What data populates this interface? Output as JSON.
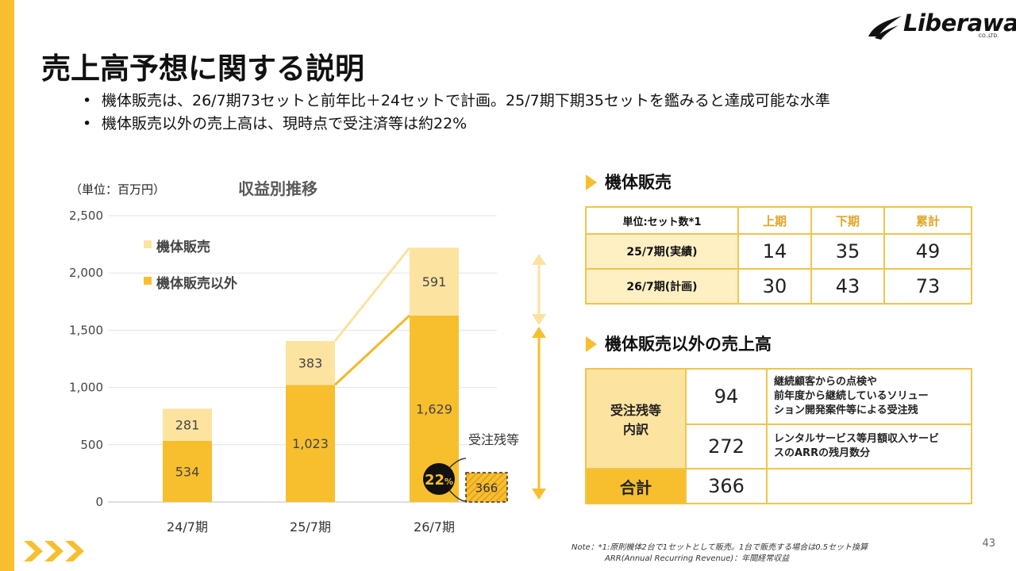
{
  "brand": {
    "logo_text": "Liberaware",
    "logo_sub": "CO.,LTD."
  },
  "colors": {
    "accent": "#f7bf2e",
    "light": "#fde3a0",
    "dark_line": "#f2b92a",
    "light_line": "#fbe2a2"
  },
  "title": "売上高予想に関する説明",
  "bullets": [
    "機体販売は、26/7期73セットと前年比＋24セットで計画。25/7期下期35セットを鑑みると達成可能な水準",
    "機体販売以外の売上高は、現時点で受注済等は約22%"
  ],
  "chart_unit": "（単位：百万円）",
  "chart_data": {
    "type": "bar",
    "stacked": true,
    "title": "収益別推移",
    "categories": [
      "24/7期",
      "25/7期",
      "26/7期"
    ],
    "series": [
      {
        "name": "機体販売以外",
        "values": [
          534,
          1023,
          1629
        ]
      },
      {
        "name": "機体販売",
        "values": [
          281,
          383,
          591
        ]
      }
    ],
    "data_labels": {
      "機体販売以外": [
        "534",
        "1,023",
        "1,629"
      ],
      "機体販売": [
        "281",
        "383",
        "591"
      ]
    },
    "yticks": [
      "0",
      "500",
      "1,000",
      "1,500",
      "2,000",
      "2,500"
    ],
    "ylim": [
      0,
      2500
    ],
    "legend": "top-left",
    "backlog": {
      "label": "受注残等",
      "value": 366,
      "value_label": "366",
      "percent_label": "22",
      "percent_unit": "%"
    }
  },
  "table1": {
    "title": "機体販売",
    "header": [
      "単位:セット数*1",
      "上期",
      "下期",
      "累計"
    ],
    "rows": [
      {
        "label": "25/7期(実績)",
        "values": [
          "14",
          "35",
          "49"
        ]
      },
      {
        "label": "26/7期(計画)",
        "values": [
          "30",
          "43",
          "73"
        ]
      }
    ]
  },
  "table2": {
    "title": "機体販売以外の売上高",
    "group_label": "受注残等\n内訳",
    "rows": [
      {
        "value": "94",
        "desc": "継続顧客からの点検や\n前年度から継続しているソリュー\nション開発案件等による受注残"
      },
      {
        "value": "272",
        "desc": "レンタルサービス等月額収入サービ\nスのARRの残月数分"
      }
    ],
    "total_label": "合計",
    "total_value": "366"
  },
  "note": {
    "line1": "Note：*1:原則機体2台で1セットとして販売。1台で販売する場合は0.5セット換算",
    "line2": "ARR(Annual Recurring Revenue)：年間経常収益"
  },
  "page_number": "43"
}
